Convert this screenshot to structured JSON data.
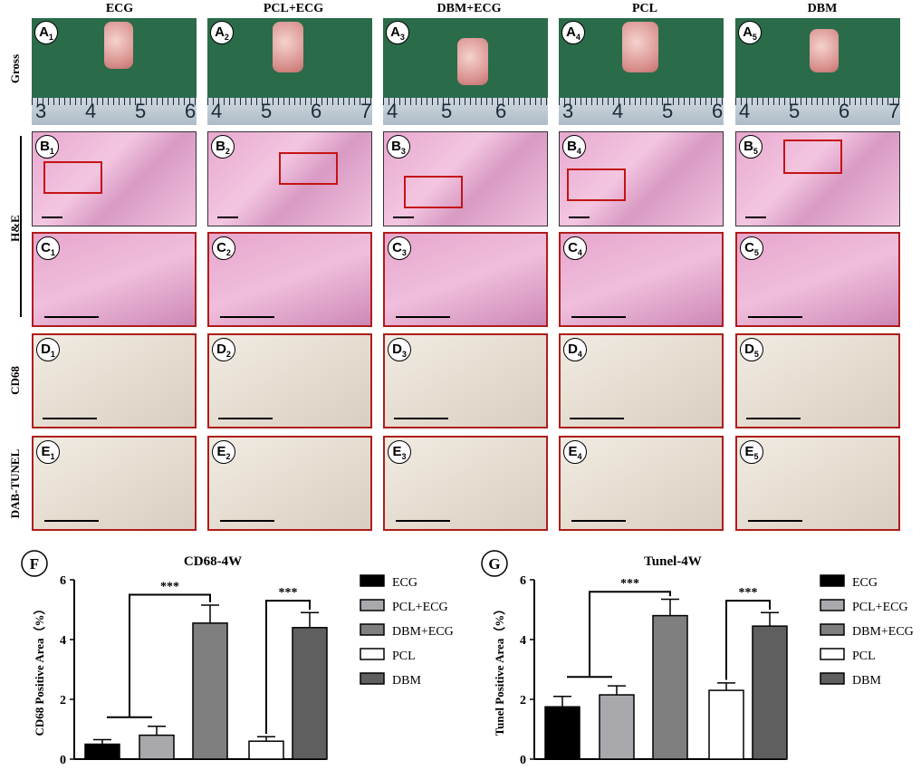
{
  "columns": [
    "ECG",
    "PCL+ECG",
    "DBM+ECG",
    "PCL",
    "DBM"
  ],
  "rows": {
    "gross": "Gross",
    "he": "H&E",
    "cd68": "CD68",
    "tunel": "DAB-TUNEL"
  },
  "panel_letters": [
    "A",
    "B",
    "C",
    "D",
    "E"
  ],
  "panel_numbers": [
    "1",
    "2",
    "3",
    "4",
    "5"
  ],
  "ruler_numbers": [
    [
      "3",
      "4",
      "5",
      "6"
    ],
    [
      "4",
      "5",
      "6",
      "7"
    ],
    [
      "4",
      "5",
      "6"
    ],
    [
      "3",
      "4",
      "5",
      "6"
    ],
    [
      "4",
      "5",
      "6",
      "7"
    ]
  ],
  "colors": {
    "stain_border": "#b01c1c",
    "gross_bg": "#2a6b4a"
  },
  "chart_data": [
    {
      "panel_label": "F",
      "type": "bar",
      "title": "CD68-4W",
      "ylabel": "CD68 Positive Area（%）",
      "ylim": [
        0,
        6
      ],
      "yticks": [
        "0",
        "2",
        "4",
        "6"
      ],
      "categories": [
        "ECG",
        "PCL+ECG",
        "DBM+ECG",
        "PCL",
        "DBM"
      ],
      "values": [
        0.5,
        0.8,
        4.55,
        0.6,
        4.4
      ],
      "errors": [
        0.15,
        0.3,
        0.6,
        0.15,
        0.5
      ],
      "colors": [
        "#000000",
        "#a9a9ad",
        "#7f7f7f",
        "#ffffff",
        "#5f5f5f"
      ],
      "significance": [
        {
          "from": "ECG+PCL+ECG",
          "to": "DBM+ECG",
          "label": "***",
          "y": 5.5
        },
        {
          "from": "PCL",
          "to": "DBM",
          "label": "***",
          "y": 5.3
        }
      ],
      "legend_position": "right"
    },
    {
      "panel_label": "G",
      "type": "bar",
      "title": "Tunel-4W",
      "ylabel": "Tunel Positive Area（%）",
      "ylim": [
        0,
        6
      ],
      "yticks": [
        "0",
        "2",
        "4",
        "6"
      ],
      "categories": [
        "ECG",
        "PCL+ECG",
        "DBM+ECG",
        "PCL",
        "DBM"
      ],
      "values": [
        1.75,
        2.15,
        4.8,
        2.3,
        4.45
      ],
      "errors": [
        0.35,
        0.3,
        0.55,
        0.25,
        0.45
      ],
      "colors": [
        "#000000",
        "#a9a9ad",
        "#7f7f7f",
        "#ffffff",
        "#5f5f5f"
      ],
      "significance": [
        {
          "from": "ECG+PCL+ECG",
          "to": "DBM+ECG",
          "label": "***",
          "y": 5.6
        },
        {
          "from": "PCL",
          "to": "DBM",
          "label": "***",
          "y": 5.3
        }
      ],
      "legend_position": "right"
    }
  ]
}
